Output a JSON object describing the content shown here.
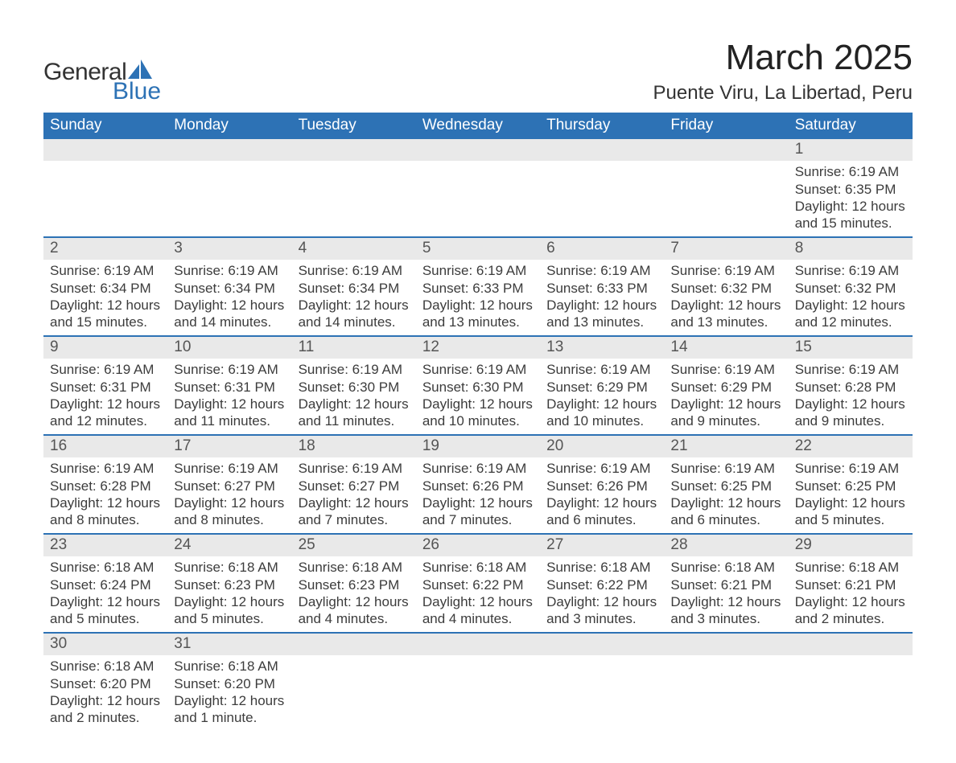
{
  "brand": {
    "word1": "General",
    "word2": "Blue",
    "word1_color": "#333333",
    "word2_color": "#2d72b5",
    "icon_color": "#2d72b5"
  },
  "title": "March 2025",
  "location": "Puente Viru, La Libertad, Peru",
  "colors": {
    "header_bg": "#2d72b5",
    "header_fg": "#ffffff",
    "daynum_bg": "#e9e9e9",
    "row_divider": "#2d72b5",
    "text": "#3c3c3c"
  },
  "columns": [
    "Sunday",
    "Monday",
    "Tuesday",
    "Wednesday",
    "Thursday",
    "Friday",
    "Saturday"
  ],
  "weeks": [
    [
      null,
      null,
      null,
      null,
      null,
      null,
      {
        "n": "1",
        "sunrise": "6:19 AM",
        "sunset": "6:35 PM",
        "daylight": "12 hours and 15 minutes."
      }
    ],
    [
      {
        "n": "2",
        "sunrise": "6:19 AM",
        "sunset": "6:34 PM",
        "daylight": "12 hours and 15 minutes."
      },
      {
        "n": "3",
        "sunrise": "6:19 AM",
        "sunset": "6:34 PM",
        "daylight": "12 hours and 14 minutes."
      },
      {
        "n": "4",
        "sunrise": "6:19 AM",
        "sunset": "6:34 PM",
        "daylight": "12 hours and 14 minutes."
      },
      {
        "n": "5",
        "sunrise": "6:19 AM",
        "sunset": "6:33 PM",
        "daylight": "12 hours and 13 minutes."
      },
      {
        "n": "6",
        "sunrise": "6:19 AM",
        "sunset": "6:33 PM",
        "daylight": "12 hours and 13 minutes."
      },
      {
        "n": "7",
        "sunrise": "6:19 AM",
        "sunset": "6:32 PM",
        "daylight": "12 hours and 13 minutes."
      },
      {
        "n": "8",
        "sunrise": "6:19 AM",
        "sunset": "6:32 PM",
        "daylight": "12 hours and 12 minutes."
      }
    ],
    [
      {
        "n": "9",
        "sunrise": "6:19 AM",
        "sunset": "6:31 PM",
        "daylight": "12 hours and 12 minutes."
      },
      {
        "n": "10",
        "sunrise": "6:19 AM",
        "sunset": "6:31 PM",
        "daylight": "12 hours and 11 minutes."
      },
      {
        "n": "11",
        "sunrise": "6:19 AM",
        "sunset": "6:30 PM",
        "daylight": "12 hours and 11 minutes."
      },
      {
        "n": "12",
        "sunrise": "6:19 AM",
        "sunset": "6:30 PM",
        "daylight": "12 hours and 10 minutes."
      },
      {
        "n": "13",
        "sunrise": "6:19 AM",
        "sunset": "6:29 PM",
        "daylight": "12 hours and 10 minutes."
      },
      {
        "n": "14",
        "sunrise": "6:19 AM",
        "sunset": "6:29 PM",
        "daylight": "12 hours and 9 minutes."
      },
      {
        "n": "15",
        "sunrise": "6:19 AM",
        "sunset": "6:28 PM",
        "daylight": "12 hours and 9 minutes."
      }
    ],
    [
      {
        "n": "16",
        "sunrise": "6:19 AM",
        "sunset": "6:28 PM",
        "daylight": "12 hours and 8 minutes."
      },
      {
        "n": "17",
        "sunrise": "6:19 AM",
        "sunset": "6:27 PM",
        "daylight": "12 hours and 8 minutes."
      },
      {
        "n": "18",
        "sunrise": "6:19 AM",
        "sunset": "6:27 PM",
        "daylight": "12 hours and 7 minutes."
      },
      {
        "n": "19",
        "sunrise": "6:19 AM",
        "sunset": "6:26 PM",
        "daylight": "12 hours and 7 minutes."
      },
      {
        "n": "20",
        "sunrise": "6:19 AM",
        "sunset": "6:26 PM",
        "daylight": "12 hours and 6 minutes."
      },
      {
        "n": "21",
        "sunrise": "6:19 AM",
        "sunset": "6:25 PM",
        "daylight": "12 hours and 6 minutes."
      },
      {
        "n": "22",
        "sunrise": "6:19 AM",
        "sunset": "6:25 PM",
        "daylight": "12 hours and 5 minutes."
      }
    ],
    [
      {
        "n": "23",
        "sunrise": "6:18 AM",
        "sunset": "6:24 PM",
        "daylight": "12 hours and 5 minutes."
      },
      {
        "n": "24",
        "sunrise": "6:18 AM",
        "sunset": "6:23 PM",
        "daylight": "12 hours and 5 minutes."
      },
      {
        "n": "25",
        "sunrise": "6:18 AM",
        "sunset": "6:23 PM",
        "daylight": "12 hours and 4 minutes."
      },
      {
        "n": "26",
        "sunrise": "6:18 AM",
        "sunset": "6:22 PM",
        "daylight": "12 hours and 4 minutes."
      },
      {
        "n": "27",
        "sunrise": "6:18 AM",
        "sunset": "6:22 PM",
        "daylight": "12 hours and 3 minutes."
      },
      {
        "n": "28",
        "sunrise": "6:18 AM",
        "sunset": "6:21 PM",
        "daylight": "12 hours and 3 minutes."
      },
      {
        "n": "29",
        "sunrise": "6:18 AM",
        "sunset": "6:21 PM",
        "daylight": "12 hours and 2 minutes."
      }
    ],
    [
      {
        "n": "30",
        "sunrise": "6:18 AM",
        "sunset": "6:20 PM",
        "daylight": "12 hours and 2 minutes."
      },
      {
        "n": "31",
        "sunrise": "6:18 AM",
        "sunset": "6:20 PM",
        "daylight": "12 hours and 1 minute."
      },
      null,
      null,
      null,
      null,
      null
    ]
  ],
  "labels": {
    "sunrise": "Sunrise:",
    "sunset": "Sunset:",
    "daylight": "Daylight:"
  }
}
